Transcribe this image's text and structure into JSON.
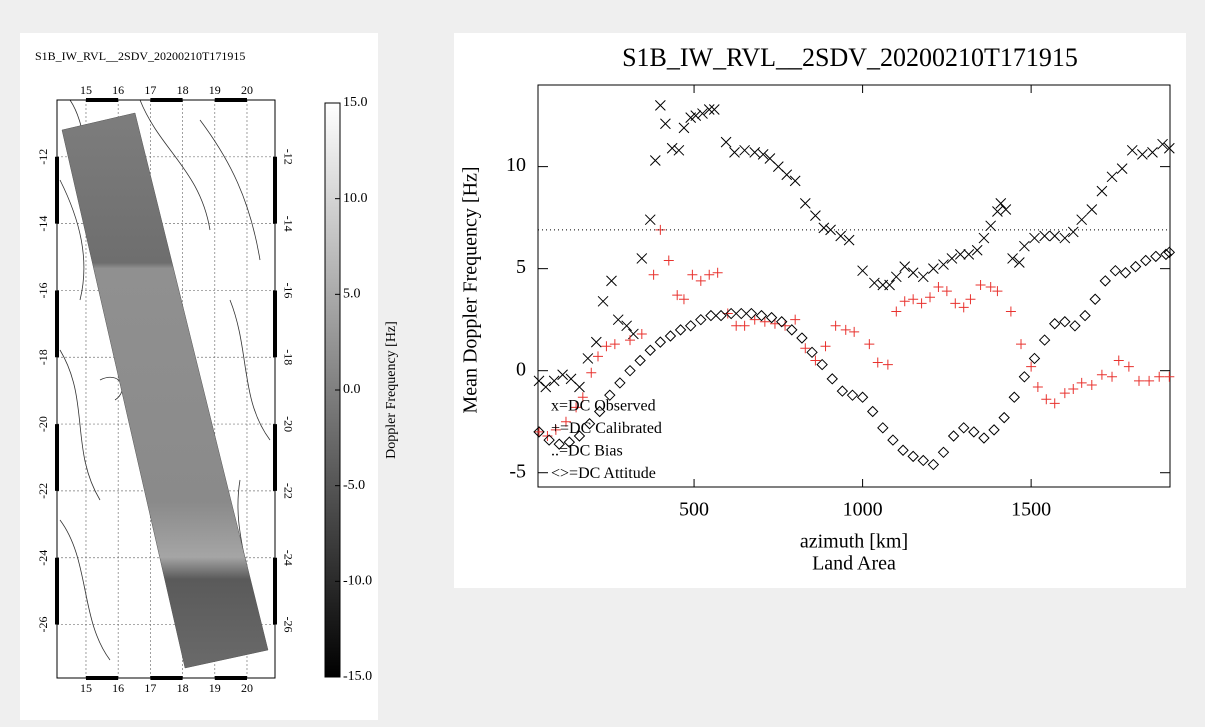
{
  "chart_data": [
    {
      "type": "map",
      "title": "S1B_IW_RVL__2SDV_20200210T171915",
      "xlim": [
        14.1,
        20.87
      ],
      "ylim": [
        -27.6,
        -10.3
      ],
      "xticks": [
        15,
        16,
        17,
        18,
        19,
        20
      ],
      "yticks": [
        -12,
        -14,
        -16,
        -18,
        -20,
        -22,
        -24,
        -26
      ],
      "grid": true,
      "colorbar": {
        "label": "Doppler Frequency [Hz]",
        "lim": [
          -15,
          15
        ],
        "ticks": [
          {
            "value": 15,
            "label": "15.0"
          },
          {
            "value": 10,
            "label": "10.0"
          },
          {
            "value": 5,
            "label": "5.0"
          },
          {
            "value": 0,
            "label": "0.0"
          },
          {
            "value": -5,
            "label": "-5.0"
          },
          {
            "value": -10,
            "label": "-10.0"
          },
          {
            "value": -15,
            "label": "-15.0"
          }
        ]
      }
    },
    {
      "type": "scatter",
      "title": "S1B_IW_RVL__2SDV_20200210T171915",
      "xlabel": "azimuth [km]",
      "subtitle": "Land Area",
      "ylabel": "Mean Doppler Frequency [Hz]",
      "xlim": [
        37,
        1912
      ],
      "ylim": [
        -5.7,
        14
      ],
      "xticks": [
        500,
        1000,
        1500
      ],
      "yticks": [
        -5,
        0,
        5,
        10
      ],
      "series": [
        {
          "name": "x=DC Observed",
          "color": "#000000",
          "marker": "x",
          "x": [
            40,
            60,
            85,
            110,
            135,
            160,
            185,
            210,
            230,
            255,
            275,
            300,
            320,
            345,
            370,
            385,
            400,
            415,
            435,
            455,
            470,
            490,
            505,
            525,
            545,
            560,
            595,
            620,
            650,
            680,
            705,
            725,
            750,
            775,
            800,
            830,
            860,
            885,
            905,
            935,
            960,
            1000,
            1035,
            1060,
            1080,
            1100,
            1125,
            1150,
            1180,
            1210,
            1240,
            1265,
            1290,
            1315,
            1340,
            1360,
            1380,
            1400,
            1410,
            1425,
            1445,
            1465,
            1480,
            1510,
            1540,
            1570,
            1600,
            1625,
            1650,
            1680,
            1710,
            1740,
            1770,
            1800,
            1830,
            1860,
            1890,
            1910
          ],
          "values": [
            -0.5,
            -0.8,
            -0.5,
            -0.2,
            -0.4,
            -0.8,
            0.6,
            1.4,
            3.4,
            4.4,
            2.5,
            2.2,
            1.8,
            5.5,
            7.4,
            10.3,
            13.0,
            12.1,
            10.9,
            10.8,
            11.9,
            12.4,
            12.5,
            12.6,
            12.8,
            12.8,
            11.2,
            10.7,
            10.8,
            10.7,
            10.6,
            10.4,
            10.0,
            9.6,
            9.3,
            8.2,
            7.6,
            7.0,
            6.9,
            6.6,
            6.4,
            4.9,
            4.3,
            4.2,
            4.2,
            4.6,
            5.1,
            4.8,
            4.6,
            5.0,
            5.2,
            5.5,
            5.7,
            5.7,
            5.9,
            6.5,
            7.1,
            7.8,
            8.2,
            7.9,
            5.5,
            5.3,
            6.1,
            6.5,
            6.6,
            6.6,
            6.5,
            6.8,
            7.4,
            7.9,
            8.8,
            9.5,
            9.9,
            10.8,
            10.6,
            10.7,
            11.1,
            10.9
          ]
        },
        {
          "name": "+=DC Calibrated",
          "color": "#e8322e",
          "marker": "+",
          "x": [
            40,
            65,
            90,
            120,
            150,
            170,
            195,
            215,
            240,
            265,
            310,
            345,
            380,
            400,
            425,
            450,
            470,
            495,
            520,
            545,
            570,
            600,
            625,
            650,
            680,
            710,
            740,
            770,
            800,
            830,
            860,
            890,
            920,
            950,
            975,
            1020,
            1045,
            1075,
            1100,
            1125,
            1150,
            1175,
            1200,
            1225,
            1250,
            1275,
            1300,
            1320,
            1350,
            1380,
            1400,
            1440,
            1470,
            1500,
            1520,
            1545,
            1570,
            1600,
            1625,
            1650,
            1680,
            1710,
            1740,
            1760,
            1790,
            1820,
            1850,
            1880,
            1910
          ],
          "values": [
            -3.0,
            -3.2,
            -2.9,
            -2.5,
            -1.8,
            -1.3,
            -0.1,
            0.7,
            1.2,
            1.3,
            1.5,
            1.8,
            4.7,
            6.9,
            5.4,
            3.7,
            3.5,
            4.7,
            4.4,
            4.7,
            4.8,
            2.8,
            2.2,
            2.2,
            2.5,
            2.4,
            2.3,
            2.2,
            2.5,
            1.1,
            0.5,
            1.2,
            2.2,
            2.0,
            1.9,
            1.3,
            0.4,
            0.3,
            2.9,
            3.4,
            3.5,
            3.3,
            3.6,
            4.1,
            3.9,
            3.3,
            3.1,
            3.5,
            4.2,
            4.1,
            3.9,
            2.9,
            1.3,
            0.2,
            -0.8,
            -1.4,
            -1.6,
            -1.1,
            -0.9,
            -0.6,
            -0.7,
            -0.2,
            -0.3,
            0.5,
            0.2,
            -0.5,
            -0.5,
            -0.3,
            -0.3
          ]
        },
        {
          "name": "..=DC Bias",
          "color": "#000000",
          "marker": "dotted-line",
          "x": [
            37,
            1912
          ],
          "values": [
            6.9,
            6.9
          ]
        },
        {
          "name": "<>=DC Attitude",
          "color": "#000000",
          "marker": "diamond",
          "x": [
            40,
            70,
            100,
            130,
            160,
            190,
            220,
            250,
            280,
            310,
            340,
            370,
            400,
            430,
            460,
            490,
            520,
            550,
            580,
            610,
            640,
            670,
            700,
            730,
            760,
            790,
            820,
            850,
            880,
            910,
            940,
            970,
            1000,
            1030,
            1060,
            1090,
            1120,
            1150,
            1180,
            1210,
            1240,
            1270,
            1300,
            1330,
            1360,
            1390,
            1420,
            1450,
            1480,
            1510,
            1540,
            1570,
            1600,
            1630,
            1660,
            1690,
            1720,
            1750,
            1780,
            1810,
            1840,
            1870,
            1900,
            1910
          ],
          "values": [
            -3.0,
            -3.4,
            -3.6,
            -3.5,
            -3.2,
            -2.6,
            -2.0,
            -1.2,
            -0.6,
            0.0,
            0.5,
            1.0,
            1.4,
            1.7,
            2.0,
            2.2,
            2.5,
            2.7,
            2.7,
            2.8,
            2.8,
            2.8,
            2.7,
            2.6,
            2.4,
            2.0,
            1.6,
            0.9,
            0.3,
            -0.4,
            -1.0,
            -1.2,
            -1.3,
            -2.0,
            -2.8,
            -3.4,
            -3.9,
            -4.2,
            -4.4,
            -4.6,
            -4.0,
            -3.2,
            -2.8,
            -3.0,
            -3.3,
            -2.9,
            -2.3,
            -1.3,
            -0.3,
            0.6,
            1.5,
            2.3,
            2.4,
            2.2,
            2.7,
            3.5,
            4.4,
            4.9,
            4.8,
            5.1,
            5.4,
            5.6,
            5.7,
            5.8
          ]
        }
      ]
    }
  ]
}
